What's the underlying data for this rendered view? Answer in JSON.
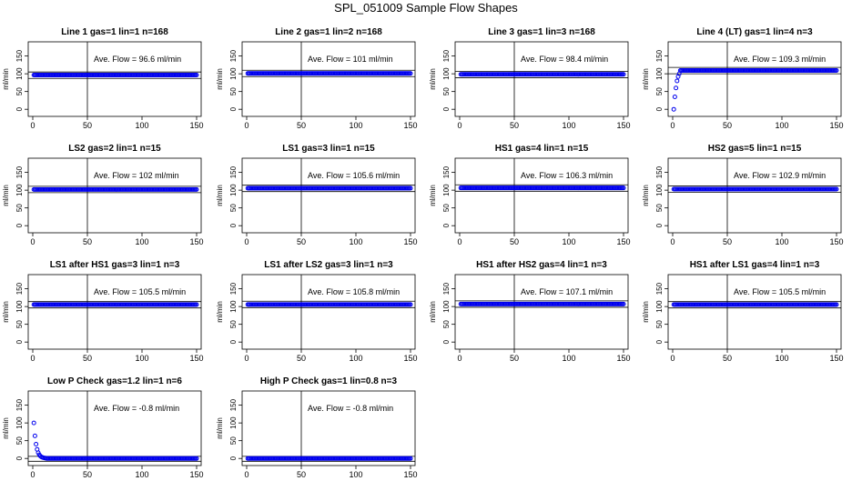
{
  "figure": {
    "title": "SPL_051009  Sample Flow Shapes"
  },
  "chart_data": [
    {
      "type": "scatter",
      "title": "Line 1 gas=1 lin=1 n=168",
      "ylabel": "ml/min",
      "annotation": "Ave. Flow =  96.6  ml/min",
      "xlim": [
        0,
        150
      ],
      "ylim": [
        -20,
        190
      ],
      "xticks": [
        0,
        50,
        100,
        150
      ],
      "yticks": [
        0,
        50,
        100,
        150
      ],
      "vline": 50,
      "hlines": [
        87,
        105
      ],
      "series": [
        {
          "name": "",
          "shape": "flat",
          "start_x": 1,
          "end_x": 150,
          "level": 96.6
        }
      ]
    },
    {
      "type": "scatter",
      "title": "Line 2 gas=1 lin=2 n=168",
      "ylabel": "ml/min",
      "annotation": "Ave. Flow =  101  ml/min",
      "xlim": [
        0,
        150
      ],
      "ylim": [
        -20,
        190
      ],
      "xticks": [
        0,
        50,
        100,
        150
      ],
      "yticks": [
        0,
        50,
        100,
        150
      ],
      "vline": 50,
      "hlines": [
        92,
        110
      ],
      "series": [
        {
          "name": "",
          "shape": "flat",
          "start_x": 1,
          "end_x": 150,
          "level": 101
        }
      ]
    },
    {
      "type": "scatter",
      "title": "Line 3 gas=1 lin=3 n=168",
      "ylabel": "ml/min",
      "annotation": "Ave. Flow =  98.4  ml/min",
      "xlim": [
        0,
        150
      ],
      "ylim": [
        -20,
        190
      ],
      "xticks": [
        0,
        50,
        100,
        150
      ],
      "yticks": [
        0,
        50,
        100,
        150
      ],
      "vline": 50,
      "hlines": [
        89,
        107
      ],
      "series": [
        {
          "name": "",
          "shape": "flat",
          "start_x": 1,
          "end_x": 150,
          "level": 98.4
        }
      ]
    },
    {
      "type": "scatter",
      "title": "Line 4 (LT) gas=1 lin=4 n=3",
      "ylabel": "ml/min",
      "annotation": "Ave. Flow =  109.3  ml/min",
      "xlim": [
        0,
        150
      ],
      "ylim": [
        -20,
        190
      ],
      "xticks": [
        0,
        50,
        100,
        150
      ],
      "yticks": [
        0,
        50,
        100,
        150
      ],
      "vline": 50,
      "hlines": [
        100,
        118
      ],
      "series": [
        {
          "name": "",
          "shape": "rise",
          "start_x": 1,
          "end_x": 150,
          "level": 109.3
        }
      ]
    },
    {
      "type": "scatter",
      "title": "LS2 gas=2 lin=1 n=15",
      "ylabel": "ml/min",
      "annotation": "Ave. Flow =  102  ml/min",
      "xlim": [
        0,
        150
      ],
      "ylim": [
        -20,
        190
      ],
      "xticks": [
        0,
        50,
        100,
        150
      ],
      "yticks": [
        0,
        50,
        100,
        150
      ],
      "vline": 50,
      "hlines": [
        93,
        111
      ],
      "series": [
        {
          "name": "",
          "shape": "flat",
          "start_x": 1,
          "end_x": 150,
          "level": 102
        }
      ]
    },
    {
      "type": "scatter",
      "title": "LS1 gas=3 lin=1 n=15",
      "ylabel": "ml/min",
      "annotation": "Ave. Flow =  105.6  ml/min",
      "xlim": [
        0,
        150
      ],
      "ylim": [
        -20,
        190
      ],
      "xticks": [
        0,
        50,
        100,
        150
      ],
      "yticks": [
        0,
        50,
        100,
        150
      ],
      "vline": 50,
      "hlines": [
        96,
        114
      ],
      "series": [
        {
          "name": "",
          "shape": "flat",
          "start_x": 1,
          "end_x": 150,
          "level": 105.6
        }
      ]
    },
    {
      "type": "scatter",
      "title": "HS1 gas=4 lin=1 n=15",
      "ylabel": "ml/min",
      "annotation": "Ave. Flow =  106.3  ml/min",
      "xlim": [
        0,
        150
      ],
      "ylim": [
        -20,
        190
      ],
      "xticks": [
        0,
        50,
        100,
        150
      ],
      "yticks": [
        0,
        50,
        100,
        150
      ],
      "vline": 50,
      "hlines": [
        97,
        115
      ],
      "series": [
        {
          "name": "",
          "shape": "flat",
          "start_x": 1,
          "end_x": 150,
          "level": 106.3
        }
      ]
    },
    {
      "type": "scatter",
      "title": "HS2 gas=5 lin=1 n=15",
      "ylabel": "ml/min",
      "annotation": "Ave. Flow =  102.9  ml/min",
      "xlim": [
        0,
        150
      ],
      "ylim": [
        -20,
        190
      ],
      "xticks": [
        0,
        50,
        100,
        150
      ],
      "yticks": [
        0,
        50,
        100,
        150
      ],
      "vline": 50,
      "hlines": [
        94,
        112
      ],
      "series": [
        {
          "name": "",
          "shape": "flat",
          "start_x": 1,
          "end_x": 150,
          "level": 102.9
        }
      ]
    },
    {
      "type": "scatter",
      "title": "LS1 after HS1 gas=3 lin=1 n=3",
      "ylabel": "ml/min",
      "annotation": "Ave. Flow =  105.5  ml/min",
      "xlim": [
        0,
        150
      ],
      "ylim": [
        -20,
        190
      ],
      "xticks": [
        0,
        50,
        100,
        150
      ],
      "yticks": [
        0,
        50,
        100,
        150
      ],
      "vline": 50,
      "hlines": [
        96,
        114
      ],
      "series": [
        {
          "name": "",
          "shape": "flat",
          "start_x": 1,
          "end_x": 150,
          "level": 105.5
        }
      ]
    },
    {
      "type": "scatter",
      "title": "LS1 after LS2 gas=3 lin=1 n=3",
      "ylabel": "ml/min",
      "annotation": "Ave. Flow =  105.8  ml/min",
      "xlim": [
        0,
        150
      ],
      "ylim": [
        -20,
        190
      ],
      "xticks": [
        0,
        50,
        100,
        150
      ],
      "yticks": [
        0,
        50,
        100,
        150
      ],
      "vline": 50,
      "hlines": [
        97,
        115
      ],
      "series": [
        {
          "name": "",
          "shape": "flat",
          "start_x": 1,
          "end_x": 150,
          "level": 105.8
        }
      ]
    },
    {
      "type": "scatter",
      "title": "HS1 after HS2 gas=4 lin=1 n=3",
      "ylabel": "ml/min",
      "annotation": "Ave. Flow =  107.1  ml/min",
      "xlim": [
        0,
        150
      ],
      "ylim": [
        -20,
        190
      ],
      "xticks": [
        0,
        50,
        100,
        150
      ],
      "yticks": [
        0,
        50,
        100,
        150
      ],
      "vline": 50,
      "hlines": [
        98,
        116
      ],
      "series": [
        {
          "name": "",
          "shape": "flat",
          "start_x": 1,
          "end_x": 150,
          "level": 107.1
        }
      ]
    },
    {
      "type": "scatter",
      "title": "HS1 after LS1 gas=4 lin=1 n=3",
      "ylabel": "ml/min",
      "annotation": "Ave. Flow =  105.5  ml/min",
      "xlim": [
        0,
        150
      ],
      "ylim": [
        -20,
        190
      ],
      "xticks": [
        0,
        50,
        100,
        150
      ],
      "yticks": [
        0,
        50,
        100,
        150
      ],
      "vline": 50,
      "hlines": [
        96,
        114
      ],
      "series": [
        {
          "name": "",
          "shape": "flat",
          "start_x": 1,
          "end_x": 150,
          "level": 105.5
        }
      ]
    },
    {
      "type": "scatter",
      "title": "Low P Check gas=1.2 lin=1 n=6",
      "ylabel": "ml/min",
      "annotation": "Ave. Flow =  -0.8  ml/min",
      "xlim": [
        0,
        150
      ],
      "ylim": [
        -20,
        190
      ],
      "xticks": [
        0,
        50,
        100,
        150
      ],
      "yticks": [
        0,
        50,
        100,
        150
      ],
      "vline": 50,
      "hlines": [
        -8,
        6
      ],
      "series": [
        {
          "name": "",
          "shape": "decay",
          "start_x": 1,
          "end_x": 150,
          "level": 0,
          "peak": 100
        }
      ]
    },
    {
      "type": "scatter",
      "title": "High P Check gas=1 lin=0.8 n=3",
      "ylabel": "ml/min",
      "annotation": "Ave. Flow =  -0.8  ml/min",
      "xlim": [
        0,
        150
      ],
      "ylim": [
        -20,
        190
      ],
      "xticks": [
        0,
        50,
        100,
        150
      ],
      "yticks": [
        0,
        50,
        100,
        150
      ],
      "vline": 50,
      "hlines": [
        -8,
        6
      ],
      "series": [
        {
          "name": "",
          "shape": "flat",
          "start_x": 1,
          "end_x": 150,
          "level": 0
        }
      ]
    }
  ]
}
